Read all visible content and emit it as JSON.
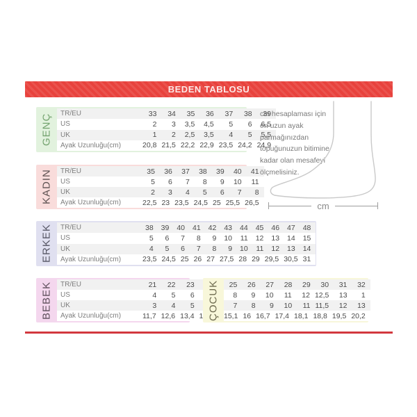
{
  "header": {
    "title": "BEDEN TABLOSU",
    "bar_color": "#e8423d",
    "bottom_line_color": "#d2383e"
  },
  "row_labels": [
    "TR/EU",
    "US",
    "UK",
    "Ayak Uzunluğu(cm)"
  ],
  "chart_data": [
    {
      "type": "table",
      "title": "GENÇ",
      "bg": "#e2f2de",
      "label_color": "#74a36f",
      "show_row_labels": true,
      "row_labels": [
        "TR/EU",
        "US",
        "UK",
        "Ayak Uzunluğu(cm)"
      ],
      "rows": [
        [
          "33",
          "34",
          "35",
          "36",
          "37",
          "38",
          "39"
        ],
        [
          "2",
          "3",
          "3,5",
          "4,5",
          "5",
          "6",
          "6,5"
        ],
        [
          "1",
          "2",
          "2,5",
          "3,5",
          "4",
          "5",
          "5,5"
        ],
        [
          "20,8",
          "21,5",
          "22,2",
          "22,9",
          "23,5",
          "24,2",
          "24,9"
        ]
      ]
    },
    {
      "type": "table",
      "title": "KADIN",
      "bg": "#f9dcdb",
      "label_color": "#5e5252",
      "show_row_labels": true,
      "row_labels": [
        "TR/EU",
        "US",
        "UK",
        "Ayak Uzunluğu(cm)"
      ],
      "rows": [
        [
          "35",
          "36",
          "37",
          "38",
          "39",
          "40",
          "41"
        ],
        [
          "5",
          "6",
          "7",
          "8",
          "9",
          "10",
          "11"
        ],
        [
          "2",
          "3",
          "4",
          "5",
          "6",
          "7",
          "8"
        ],
        [
          "22,5",
          "23",
          "23,5",
          "24,5",
          "25",
          "25,5",
          "26,5"
        ]
      ]
    },
    {
      "type": "table",
      "title": "ERKEK",
      "bg": "#e0e0f0",
      "label_color": "#565664",
      "show_row_labels": true,
      "row_labels": [
        "TR/EU",
        "US",
        "UK",
        "Ayak Uzunluğu(cm)"
      ],
      "rows": [
        [
          "38",
          "39",
          "40",
          "41",
          "42",
          "43",
          "44",
          "45",
          "46",
          "47",
          "48"
        ],
        [
          "5",
          "6",
          "7",
          "8",
          "9",
          "10",
          "11",
          "12",
          "13",
          "14",
          "15"
        ],
        [
          "4",
          "5",
          "6",
          "7",
          "8",
          "9",
          "10",
          "11",
          "12",
          "13",
          "14"
        ],
        [
          "23,5",
          "24,5",
          "25",
          "26",
          "27",
          "27,5",
          "28",
          "29",
          "29,5",
          "30,5",
          "31"
        ]
      ]
    },
    {
      "type": "table",
      "title": "BEBEK",
      "bg": "#f4d7ee",
      "label_color": "#5d4f5b",
      "show_row_labels": true,
      "row_labels": [
        "TR/EU",
        "US",
        "UK",
        "Ayak Uzunluğu(cm)"
      ],
      "rows": [
        [
          "21",
          "22",
          "23",
          "24"
        ],
        [
          "4",
          "5",
          "6",
          "7"
        ],
        [
          "3",
          "4",
          "5",
          "6"
        ],
        [
          "11,7",
          "12,6",
          "13,4",
          "14,3"
        ]
      ]
    },
    {
      "type": "table",
      "title": "ÇOCUK",
      "bg": "#f8f7da",
      "label_color": "#6e6b50",
      "show_row_labels": false,
      "row_labels": [
        "TR/EU",
        "US",
        "UK",
        "Ayak Uzunluğu(cm)"
      ],
      "rows": [
        [
          "25",
          "26",
          "27",
          "28",
          "29",
          "30",
          "31",
          "32"
        ],
        [
          "8",
          "9",
          "10",
          "11",
          "12",
          "12,5",
          "13",
          "1"
        ],
        [
          "7",
          "8",
          "9",
          "10",
          "11",
          "11,5",
          "12",
          "13"
        ],
        [
          "15,1",
          "16",
          "16,7",
          "17,4",
          "18,1",
          "18,8",
          "19,5",
          "20,2"
        ]
      ]
    }
  ],
  "info": {
    "text": "cm hesaplaması için en uzun ayak parmağınızdan topuğunuzun bitimine kadar olan mesafeyi ölçmelisiniz.",
    "unit_label": "cm"
  }
}
